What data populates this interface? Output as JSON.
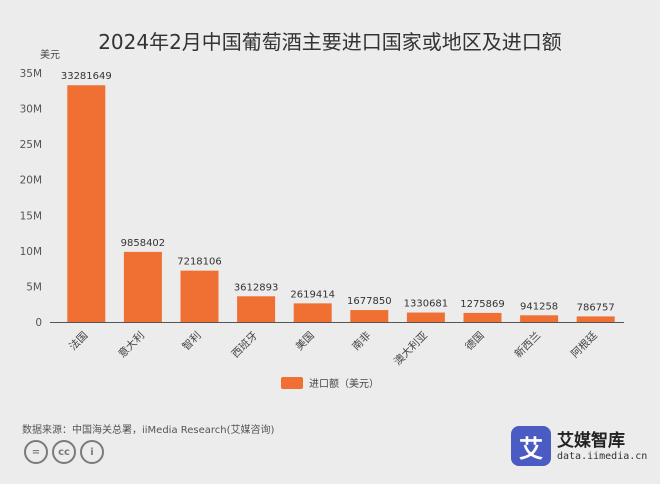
{
  "chart_data": {
    "type": "bar",
    "title": "2024年2月中国葡萄酒主要进口国家或地区及进口额",
    "ylabel": "美元",
    "categories": [
      "法国",
      "意大利",
      "智利",
      "西班牙",
      "美国",
      "南非",
      "澳大利亚",
      "德国",
      "新西兰",
      "阿根廷"
    ],
    "series": [
      {
        "name": "进口额（美元）",
        "values": [
          33281649,
          9858402,
          7218106,
          3612893,
          2619414,
          1677850,
          1330681,
          1275869,
          941258,
          786757
        ]
      }
    ],
    "ylim": [
      0,
      35000000
    ],
    "yticks": [
      0,
      5000000,
      10000000,
      15000000,
      20000000,
      25000000,
      30000000,
      35000000
    ],
    "ytick_labels": [
      "0",
      "5M",
      "10M",
      "15M",
      "20M",
      "25M",
      "30M",
      "35M"
    ],
    "grid": false,
    "legend": "bottom-center",
    "bar_color": "#f07034"
  },
  "footer": {
    "source": "数据来源：中国海关总署，iiMedia Research(艾媒咨询)",
    "brand_name": "艾媒智库",
    "brand_url": "data.iimedia.cn",
    "brand_logo_char": "艾",
    "cc_icons": [
      "=",
      "cc",
      "i"
    ]
  },
  "colors": {
    "background": "#ececec",
    "brand": "#4a5bc4"
  }
}
